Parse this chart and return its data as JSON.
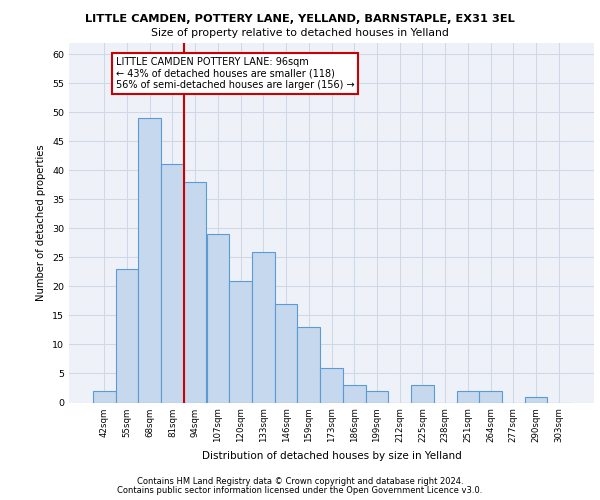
{
  "title1": "LITTLE CAMDEN, POTTERY LANE, YELLAND, BARNSTAPLE, EX31 3EL",
  "title2": "Size of property relative to detached houses in Yelland",
  "xlabel": "Distribution of detached houses by size in Yelland",
  "ylabel": "Number of detached properties",
  "categories": [
    "42sqm",
    "55sqm",
    "68sqm",
    "81sqm",
    "94sqm",
    "107sqm",
    "120sqm",
    "133sqm",
    "146sqm",
    "159sqm",
    "173sqm",
    "186sqm",
    "199sqm",
    "212sqm",
    "225sqm",
    "238sqm",
    "251sqm",
    "264sqm",
    "277sqm",
    "290sqm",
    "303sqm"
  ],
  "values": [
    2,
    23,
    49,
    41,
    38,
    29,
    21,
    26,
    17,
    13,
    6,
    3,
    2,
    0,
    3,
    0,
    2,
    2,
    0,
    1,
    0
  ],
  "bar_color": "#c5d8ed",
  "bar_edge_color": "#5b9bd5",
  "grid_color": "#d0d8e8",
  "background_color": "#eef2f8",
  "vline_color": "#cc0000",
  "vline_x_index": 4,
  "annotation_text": "LITTLE CAMDEN POTTERY LANE: 96sqm\n← 43% of detached houses are smaller (118)\n56% of semi-detached houses are larger (156) →",
  "annotation_box_color": "#ffffff",
  "annotation_box_edge": "#cc0000",
  "ylim": [
    0,
    62
  ],
  "yticks": [
    0,
    5,
    10,
    15,
    20,
    25,
    30,
    35,
    40,
    45,
    50,
    55,
    60
  ],
  "footer1": "Contains HM Land Registry data © Crown copyright and database right 2024.",
  "footer2": "Contains public sector information licensed under the Open Government Licence v3.0."
}
